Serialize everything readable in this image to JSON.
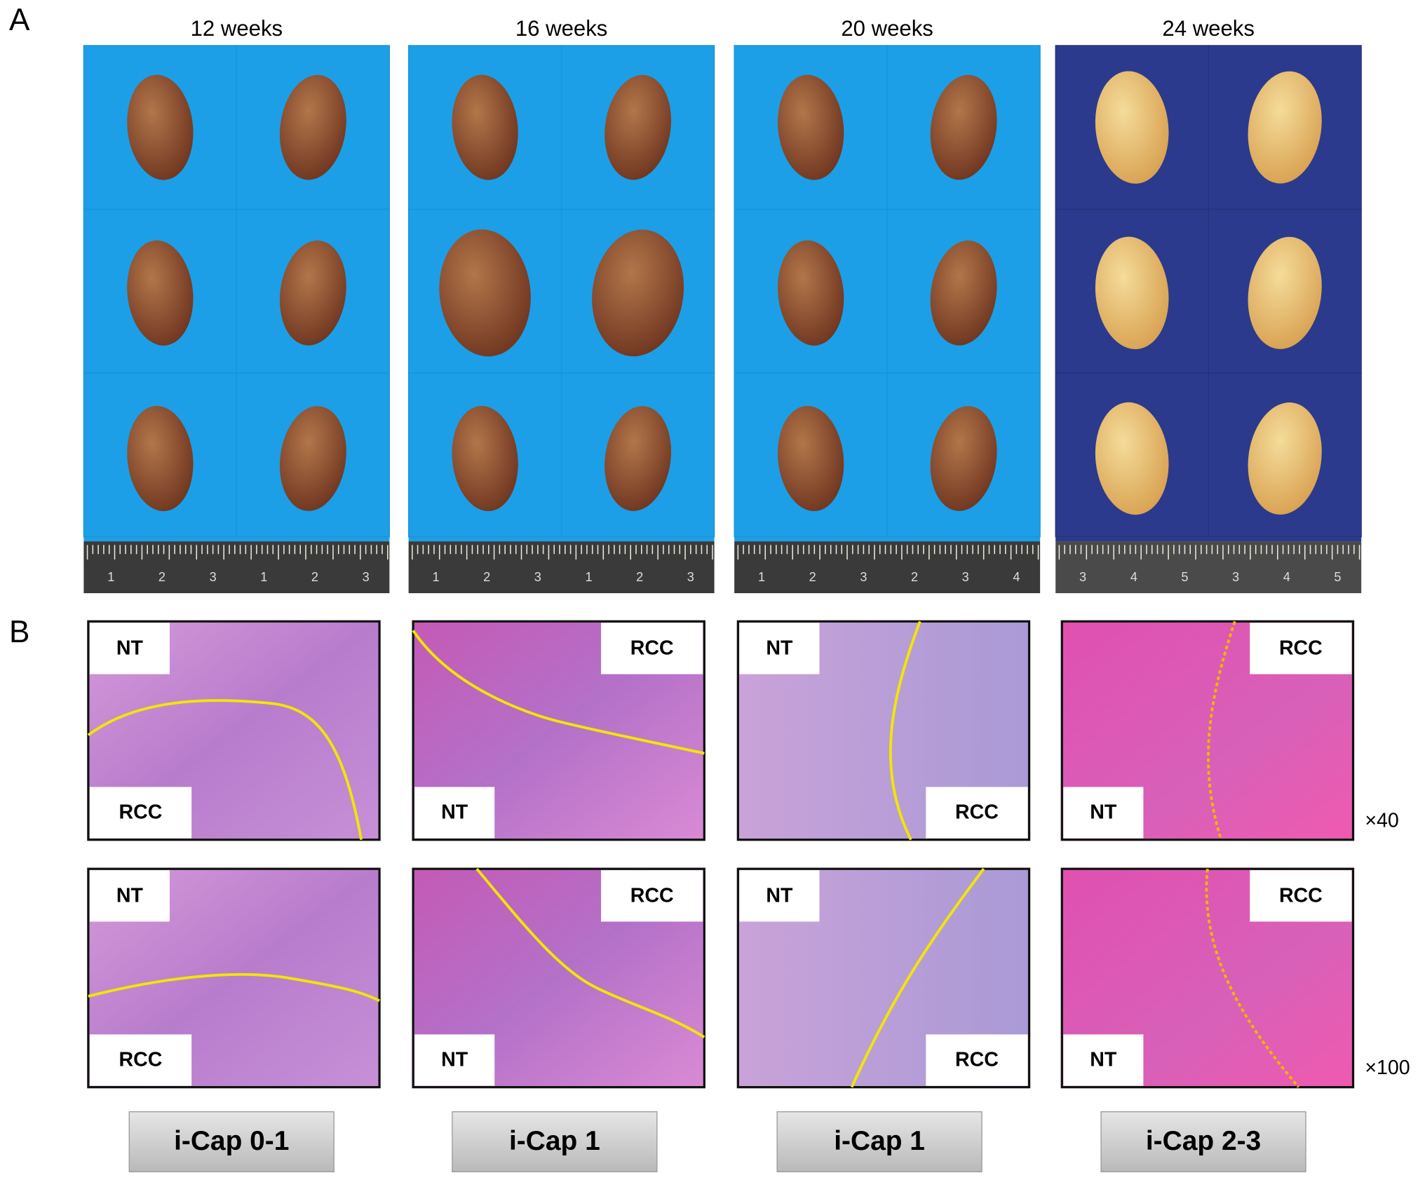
{
  "panel_a": {
    "label": "A",
    "columns": [
      "12 weeks",
      "16 weeks",
      "20 weeks",
      "24 weeks"
    ],
    "rulers": [
      [
        [
          "1",
          "2",
          "3"
        ],
        [
          "1",
          "2",
          "3"
        ]
      ],
      [
        [
          "1",
          "2",
          "3"
        ],
        [
          "1",
          "2",
          "3"
        ]
      ],
      [
        [
          "1",
          "2",
          "3"
        ],
        [
          "2",
          "3",
          "4"
        ]
      ],
      [
        [
          "3",
          "4",
          "5"
        ],
        [
          "3",
          "4",
          "5"
        ]
      ]
    ]
  },
  "panel_b": {
    "label": "B",
    "magnifications": [
      "×40",
      "×100"
    ],
    "images": [
      [
        [
          "NT",
          "RCC"
        ],
        [
          "RCC",
          "NT"
        ],
        [
          "NT",
          "RCC"
        ],
        [
          "RCC",
          "NT"
        ]
      ],
      [
        [
          "NT",
          "RCC"
        ],
        [
          "RCC",
          "NT"
        ],
        [
          "NT",
          "RCC"
        ],
        [
          "RCC",
          "NT"
        ]
      ]
    ],
    "grades": [
      "i-Cap 0-1",
      "i-Cap 1",
      "i-Cap 1",
      "i-Cap 2-3"
    ]
  }
}
